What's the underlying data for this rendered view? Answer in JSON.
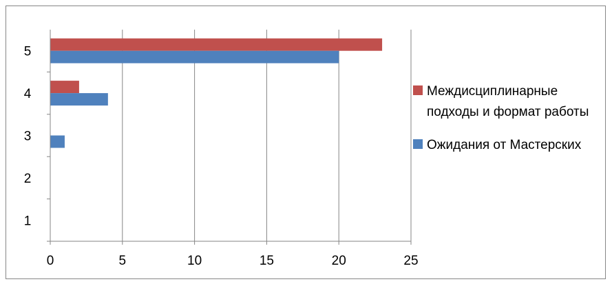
{
  "chart_data": {
    "type": "bar",
    "orientation": "horizontal",
    "categories": [
      "1",
      "2",
      "3",
      "4",
      "5"
    ],
    "series": [
      {
        "name": "Ожидания от Мастерских",
        "color": "#4F81BD",
        "values": [
          0,
          0,
          1,
          4,
          20
        ]
      },
      {
        "name": "Междисциплинарные подходы и формат работы",
        "color": "#C0504D",
        "values": [
          0,
          0,
          0,
          2,
          23
        ]
      }
    ],
    "xlim": [
      0,
      25
    ],
    "xticks": [
      "0",
      "5",
      "10",
      "15",
      "20",
      "25"
    ],
    "grid": "vertical",
    "legend_position": "right",
    "legend_order": [
      "Междисциплинарные подходы и формат работы",
      "Ожидания от Мастерских"
    ]
  }
}
